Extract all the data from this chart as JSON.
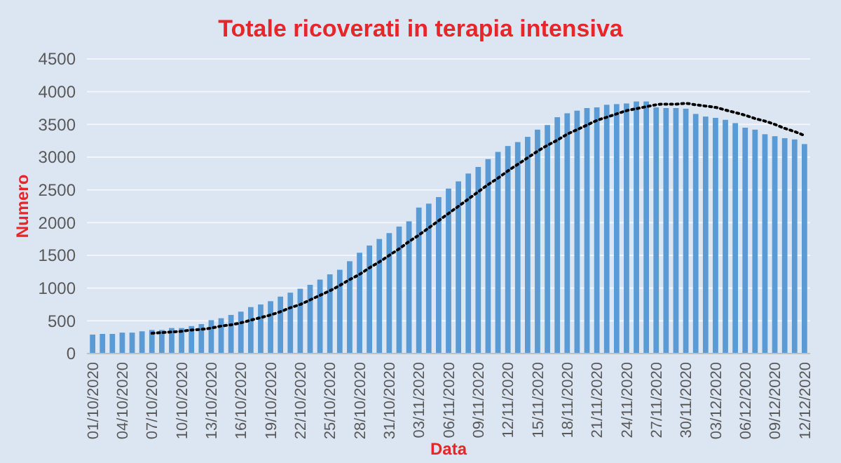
{
  "chart_data": {
    "type": "bar",
    "title": "Totale ricoverati in terapia intensiva",
    "xlabel": "Data",
    "ylabel": "Numero",
    "categories": [
      "01/10/2020",
      null,
      null,
      "04/10/2020",
      null,
      null,
      "07/10/2020",
      null,
      null,
      "10/10/2020",
      null,
      null,
      "13/10/2020",
      null,
      null,
      "16/10/2020",
      null,
      null,
      "19/10/2020",
      null,
      null,
      "22/10/2020",
      null,
      null,
      "25/10/2020",
      null,
      null,
      "28/10/2020",
      null,
      null,
      "31/10/2020",
      null,
      null,
      "03/11/2020",
      null,
      null,
      "06/11/2020",
      null,
      null,
      "09/11/2020",
      null,
      null,
      "12/11/2020",
      null,
      null,
      "15/11/2020",
      null,
      null,
      "18/11/2020",
      null,
      null,
      "21/11/2020",
      null,
      null,
      "24/11/2020",
      null,
      null,
      "27/11/2020",
      null,
      null,
      "30/11/2020",
      null,
      null,
      "03/12/2020",
      null,
      null,
      "06/12/2020",
      null,
      null,
      "09/12/2020",
      null,
      null,
      "12/12/2020"
    ],
    "series": [
      {
        "color": "#5b9bd5",
        "values": [
          290,
          300,
          300,
          320,
          320,
          340,
          360,
          360,
          390,
          390,
          420,
          450,
          510,
          540,
          590,
          640,
          710,
          750,
          800,
          870,
          930,
          990,
          1050,
          1130,
          1210,
          1280,
          1410,
          1540,
          1650,
          1750,
          1840,
          1940,
          2020,
          2230,
          2290,
          2390,
          2520,
          2630,
          2750,
          2850,
          2970,
          3080,
          3170,
          3230,
          3310,
          3420,
          3490,
          3610,
          3670,
          3710,
          3750,
          3760,
          3800,
          3810,
          3820,
          3850,
          3850,
          3760,
          3750,
          3750,
          3740,
          3660,
          3620,
          3600,
          3570,
          3520,
          3450,
          3420,
          3350,
          3320,
          3290,
          3270,
          3200
        ]
      },
      {
        "type": "line",
        "color": "#000000",
        "line_style": "dotted",
        "values": [
          null,
          null,
          null,
          null,
          null,
          null,
          310,
          320,
          330,
          340,
          360,
          370,
          390,
          420,
          440,
          470,
          510,
          550,
          590,
          640,
          700,
          750,
          820,
          890,
          960,
          1040,
          1130,
          1210,
          1310,
          1400,
          1500,
          1600,
          1710,
          1810,
          1920,
          2030,
          2140,
          2250,
          2360,
          2470,
          2580,
          2680,
          2790,
          2890,
          2990,
          3090,
          3180,
          3260,
          3350,
          3420,
          3490,
          3560,
          3610,
          3660,
          3710,
          3740,
          3770,
          3800,
          3810,
          3810,
          3820,
          3800,
          3780,
          3760,
          3720,
          3680,
          3640,
          3590,
          3550,
          3500,
          3440,
          3390,
          3330
        ]
      }
    ],
    "ylim": [
      0,
      4500
    ],
    "yticks": [
      0,
      500,
      1000,
      1500,
      2000,
      2500,
      3000,
      3500,
      4000,
      4500
    ],
    "grid": "y",
    "marker": "none"
  }
}
